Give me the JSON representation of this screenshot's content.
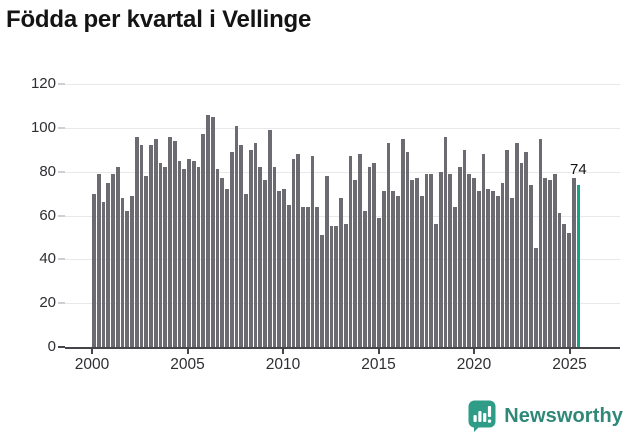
{
  "title": "Födda per kvartal i Vellinge",
  "annotation": {
    "last_value_label": "74"
  },
  "footer": {
    "brand": "Newsworthy"
  },
  "colors": {
    "bar": "#6b6b71",
    "highlight": "#16a38c",
    "grid": "#e8e8eb",
    "axis": "#45454a",
    "tick_minor": "#cfcfd3",
    "text": "#2e2e33",
    "title_text": "#141414",
    "brand_text": "#2f8878",
    "brand_icon": "#2e9c86"
  },
  "chart_data": {
    "type": "bar",
    "title": "Födda per kvartal i Vellinge",
    "xlabel": "",
    "ylabel": "",
    "ylim": [
      0,
      120
    ],
    "y_ticks": [
      0,
      20,
      40,
      60,
      80,
      100,
      120
    ],
    "x_tick_labels": [
      "2000",
      "2005",
      "2010",
      "2015",
      "2020",
      "2025"
    ],
    "grid": "horizontal",
    "legend": "none",
    "series_name": "Födda per kvartal",
    "period_start": "2000-Q1",
    "period_end": "2025-Q3",
    "highlight_last_bar": true,
    "last_bar_value_label": "74",
    "values": [
      70,
      79,
      66,
      75,
      79,
      82,
      68,
      62,
      69,
      96,
      92,
      78,
      92,
      95,
      84,
      82,
      96,
      94,
      85,
      81,
      86,
      85,
      82,
      97,
      106,
      105,
      81,
      77,
      72,
      89,
      101,
      92,
      70,
      90,
      93,
      82,
      76,
      99,
      82,
      71,
      72,
      65,
      86,
      88,
      64,
      64,
      87,
      64,
      51,
      78,
      55,
      55,
      68,
      56,
      87,
      76,
      88,
      62,
      82,
      84,
      59,
      71,
      93,
      71,
      69,
      95,
      89,
      76,
      77,
      69,
      79,
      79,
      56,
      80,
      96,
      79,
      64,
      82,
      90,
      79,
      77,
      71,
      88,
      72,
      71,
      69,
      75,
      90,
      68,
      93,
      84,
      89,
      74,
      45,
      95,
      77,
      76,
      79,
      61,
      56,
      52,
      77,
      74
    ]
  }
}
